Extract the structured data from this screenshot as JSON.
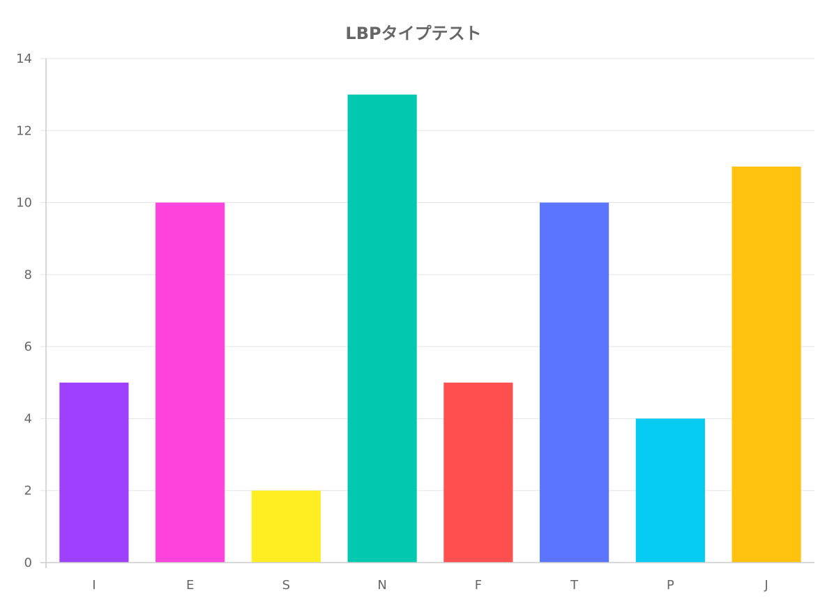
{
  "chart_data": {
    "type": "bar",
    "title": "LBPタイプテスト",
    "xlabel": "",
    "ylabel": "",
    "categories": [
      "I",
      "E",
      "S",
      "N",
      "F",
      "T",
      "P",
      "J"
    ],
    "values": [
      5,
      10,
      2,
      13,
      5,
      10,
      4,
      11
    ],
    "colors": [
      "#a040ff",
      "#ff44dd",
      "#ffee22",
      "#00c9b0",
      "#ff4f4f",
      "#5b75ff",
      "#05caf1",
      "#ffc30f"
    ],
    "ylim": [
      0,
      14
    ],
    "yticks": [
      0,
      2,
      4,
      6,
      8,
      10,
      12,
      14
    ],
    "grid": true,
    "legend": "none"
  }
}
